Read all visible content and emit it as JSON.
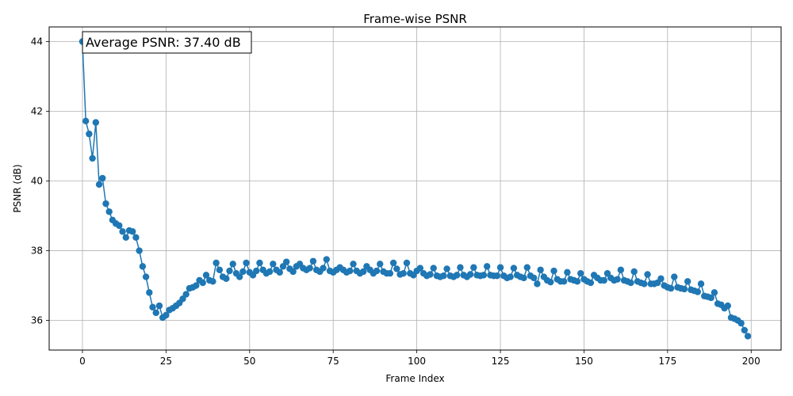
{
  "chart_data": {
    "type": "line",
    "title": "Frame-wise PSNR",
    "xlabel": "Frame Index",
    "ylabel": "PSNR (dB)",
    "xlim": [
      -9.95,
      208.95
    ],
    "ylim": [
      35.15,
      44.42
    ],
    "xticks": [
      0,
      25,
      50,
      75,
      100,
      125,
      150,
      175,
      200
    ],
    "yticks": [
      36,
      38,
      40,
      42,
      44
    ],
    "grid": true,
    "marker": "circle",
    "color": "#1f77b4",
    "annotation": "Average PSNR: 37.40 dB",
    "annotation_position": "top-left",
    "series": [
      {
        "x": [
          0,
          1,
          2,
          3,
          4,
          5,
          6,
          7,
          8,
          9,
          10,
          11,
          12,
          13,
          14,
          15,
          16,
          17,
          18,
          19,
          20,
          21,
          22,
          23,
          24,
          25,
          26,
          27,
          28,
          29,
          30,
          31,
          32,
          33,
          34,
          35,
          36,
          37,
          38,
          39,
          40,
          41,
          42,
          43,
          44,
          45,
          46,
          47,
          48,
          49,
          50,
          51,
          52,
          53,
          54,
          55,
          56,
          57,
          58,
          59,
          60,
          61,
          62,
          63,
          64,
          65,
          66,
          67,
          68,
          69,
          70,
          71,
          72,
          73,
          74,
          75,
          76,
          77,
          78,
          79,
          80,
          81,
          82,
          83,
          84,
          85,
          86,
          87,
          88,
          89,
          90,
          91,
          92,
          93,
          94,
          95,
          96,
          97,
          98,
          99,
          100,
          101,
          102,
          103,
          104,
          105,
          106,
          107,
          108,
          109,
          110,
          111,
          112,
          113,
          114,
          115,
          116,
          117,
          118,
          119,
          120,
          121,
          122,
          123,
          124,
          125,
          126,
          127,
          128,
          129,
          130,
          131,
          132,
          133,
          134,
          135,
          136,
          137,
          138,
          139,
          140,
          141,
          142,
          143,
          144,
          145,
          146,
          147,
          148,
          149,
          150,
          151,
          152,
          153,
          154,
          155,
          156,
          157,
          158,
          159,
          160,
          161,
          162,
          163,
          164,
          165,
          166,
          167,
          168,
          169,
          170,
          171,
          172,
          173,
          174,
          175,
          176,
          177,
          178,
          179,
          180,
          181,
          182,
          183,
          184,
          185,
          186,
          187,
          188,
          189,
          190,
          191,
          192,
          193,
          194,
          195,
          196,
          197,
          198,
          199
        ],
        "y": [
          44.0,
          41.72,
          41.35,
          40.65,
          41.68,
          39.9,
          40.08,
          39.35,
          39.12,
          38.88,
          38.78,
          38.72,
          38.55,
          38.38,
          38.58,
          38.55,
          38.38,
          38.0,
          37.55,
          37.25,
          36.8,
          36.38,
          36.22,
          36.42,
          36.08,
          36.15,
          36.3,
          36.35,
          36.42,
          36.5,
          36.62,
          36.75,
          36.92,
          36.95,
          37.0,
          37.15,
          37.08,
          37.3,
          37.15,
          37.12,
          37.65,
          37.45,
          37.25,
          37.2,
          37.42,
          37.62,
          37.35,
          37.25,
          37.4,
          37.65,
          37.38,
          37.3,
          37.42,
          37.65,
          37.45,
          37.35,
          37.4,
          37.62,
          37.45,
          37.38,
          37.55,
          37.68,
          37.48,
          37.4,
          37.55,
          37.62,
          37.5,
          37.45,
          37.5,
          37.7,
          37.45,
          37.4,
          37.5,
          37.75,
          37.42,
          37.38,
          37.45,
          37.52,
          37.45,
          37.38,
          37.42,
          37.62,
          37.42,
          37.35,
          37.4,
          37.55,
          37.45,
          37.35,
          37.42,
          37.62,
          37.4,
          37.35,
          37.35,
          37.65,
          37.48,
          37.32,
          37.35,
          37.65,
          37.35,
          37.3,
          37.42,
          37.5,
          37.35,
          37.28,
          37.32,
          37.5,
          37.28,
          37.25,
          37.28,
          37.48,
          37.28,
          37.25,
          37.3,
          37.52,
          37.3,
          37.25,
          37.32,
          37.52,
          37.3,
          37.28,
          37.3,
          37.55,
          37.3,
          37.28,
          37.28,
          37.52,
          37.28,
          37.22,
          37.25,
          37.5,
          37.3,
          37.25,
          37.22,
          37.52,
          37.28,
          37.22,
          37.05,
          37.45,
          37.25,
          37.15,
          37.1,
          37.42,
          37.18,
          37.12,
          37.12,
          37.38,
          37.18,
          37.15,
          37.12,
          37.35,
          37.18,
          37.12,
          37.08,
          37.3,
          37.22,
          37.15,
          37.15,
          37.35,
          37.22,
          37.15,
          37.18,
          37.45,
          37.15,
          37.12,
          37.08,
          37.4,
          37.12,
          37.08,
          37.05,
          37.32,
          37.05,
          37.05,
          37.08,
          37.2,
          37.0,
          36.95,
          36.92,
          37.25,
          36.95,
          36.92,
          36.9,
          37.12,
          36.88,
          36.85,
          36.82,
          37.05,
          36.7,
          36.68,
          36.65,
          36.8,
          36.48,
          36.45,
          36.35,
          36.42,
          36.08,
          36.05,
          36.0,
          35.92,
          35.72,
          35.55
        ]
      }
    ]
  }
}
